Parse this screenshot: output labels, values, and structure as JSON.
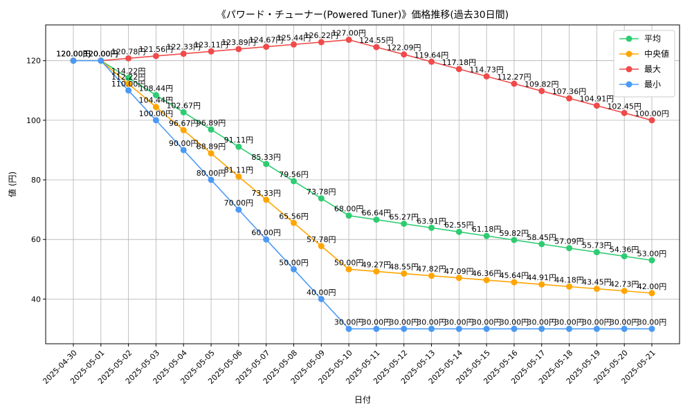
{
  "chart_data": {
    "type": "line",
    "title": "《パワード・チューナー(Powered Tuner)》価格推移(過去30日間)",
    "xlabel": "日付",
    "ylabel": "値 (円)",
    "ylim": [
      25,
      132
    ],
    "yticks": [
      40,
      60,
      80,
      100,
      120
    ],
    "grid": true,
    "legend_position": "top-right",
    "value_suffix": "円",
    "categories": [
      "2025-04-30",
      "2025-05-01",
      "2025-05-02",
      "2025-05-03",
      "2025-05-04",
      "2025-05-05",
      "2025-05-06",
      "2025-05-07",
      "2025-05-08",
      "2025-05-09",
      "2025-05-10",
      "2025-05-11",
      "2025-05-12",
      "2025-05-13",
      "2025-05-14",
      "2025-05-15",
      "2025-05-16",
      "2025-05-17",
      "2025-05-18",
      "2025-05-19",
      "2025-05-20",
      "2025-05-21"
    ],
    "series": [
      {
        "name": "平均",
        "color": "#2ecc71",
        "values": [
          120.0,
          120.0,
          114.22,
          108.44,
          102.67,
          96.89,
          91.11,
          85.33,
          79.56,
          73.78,
          68.0,
          66.64,
          65.27,
          63.91,
          62.55,
          61.18,
          59.82,
          58.45,
          57.09,
          55.73,
          54.36,
          53.0
        ]
      },
      {
        "name": "中央値",
        "color": "#ffa500",
        "values": [
          120.0,
          120.0,
          112.22,
          104.44,
          96.67,
          88.89,
          81.11,
          73.33,
          65.56,
          57.78,
          50.0,
          49.27,
          48.55,
          47.82,
          47.09,
          46.36,
          45.64,
          44.91,
          44.18,
          43.45,
          42.73,
          42.0
        ]
      },
      {
        "name": "最大",
        "color": "#f04a4a",
        "values": [
          120.0,
          120.0,
          120.78,
          121.56,
          122.33,
          123.11,
          123.89,
          124.67,
          125.44,
          126.22,
          127.0,
          124.55,
          122.09,
          119.64,
          117.18,
          114.73,
          112.27,
          109.82,
          107.36,
          104.91,
          102.45,
          100.0
        ]
      },
      {
        "name": "最小",
        "color": "#4a9af5",
        "values": [
          120.0,
          120.0,
          110.0,
          100.0,
          90.0,
          80.0,
          70.0,
          60.0,
          50.0,
          40.0,
          30.0,
          30.0,
          30.0,
          30.0,
          30.0,
          30.0,
          30.0,
          30.0,
          30.0,
          30.0,
          30.0,
          30.0
        ]
      }
    ]
  }
}
